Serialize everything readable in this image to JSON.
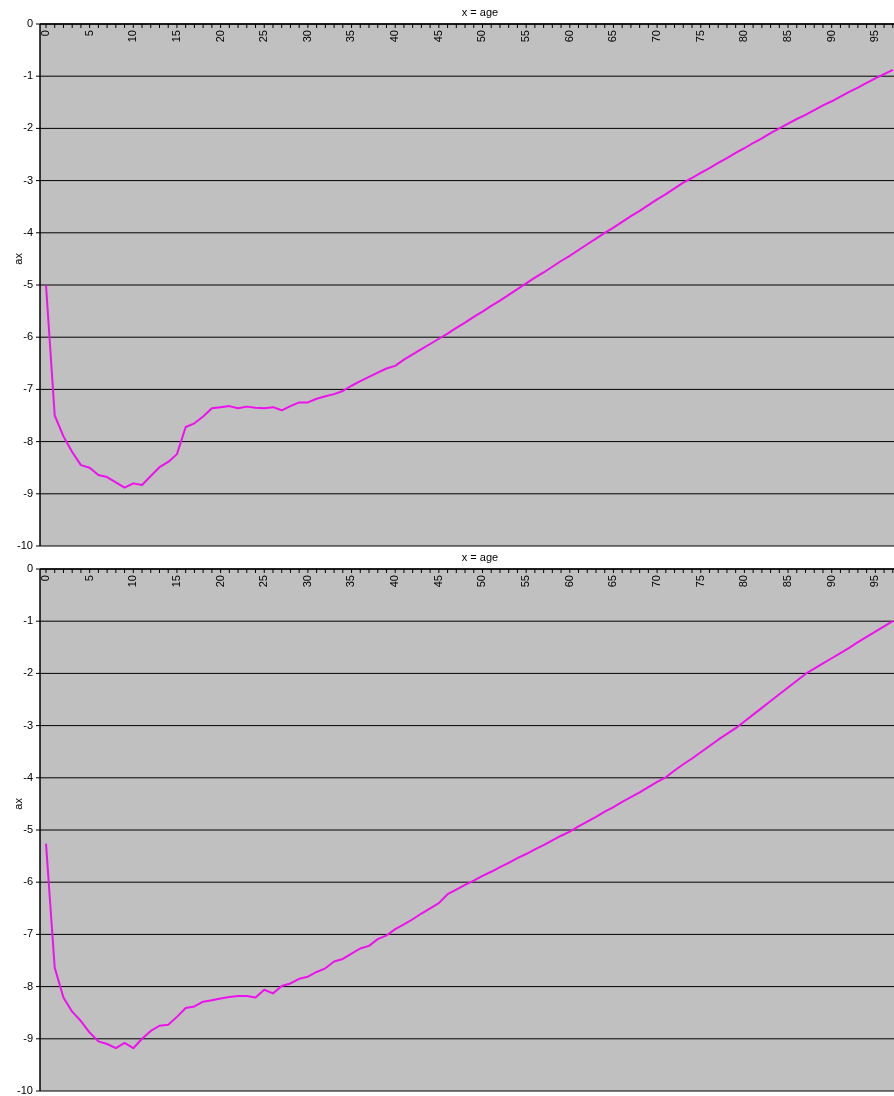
{
  "chart_data": [
    {
      "type": "line",
      "xlabel": "x = age",
      "ylabel": "ax",
      "categories": [
        "0",
        null,
        null,
        null,
        null,
        "5",
        null,
        null,
        null,
        null,
        "10",
        null,
        null,
        null,
        null,
        "15",
        null,
        null,
        null,
        null,
        "20",
        null,
        null,
        null,
        null,
        "25",
        null,
        null,
        null,
        null,
        "30",
        null,
        null,
        null,
        null,
        "35",
        null,
        null,
        null,
        null,
        "40",
        null,
        null,
        null,
        null,
        "45",
        null,
        null,
        null,
        null,
        "50",
        null,
        null,
        null,
        null,
        "55",
        null,
        null,
        null,
        null,
        "60",
        null,
        null,
        null,
        null,
        "65",
        null,
        null,
        null,
        null,
        "70",
        null,
        null,
        null,
        null,
        "75",
        null,
        null,
        null,
        null,
        "80",
        null,
        null,
        null,
        null,
        "85",
        null,
        null,
        null,
        null,
        "90",
        null,
        null,
        null,
        null,
        "95",
        null,
        null
      ],
      "ylim": [
        -10,
        0
      ],
      "yticks": [
        -10,
        -9,
        -8,
        -7,
        -6,
        -5,
        -4,
        -3,
        -2,
        -1,
        0
      ],
      "grid": "y",
      "series": [
        {
          "color": "#ee11ee",
          "values": [
            -5.0,
            -7.5,
            -7.9,
            -8.2,
            -8.45,
            -8.5,
            -8.64,
            -8.68,
            -8.78,
            -8.88,
            -8.8,
            -8.83,
            -8.66,
            -8.49,
            -8.39,
            -8.24,
            -7.72,
            -7.65,
            -7.52,
            -7.36,
            -7.34,
            -7.32,
            -7.36,
            -7.33,
            -7.35,
            -7.36,
            -7.34,
            -7.4,
            -7.32,
            -7.25,
            -7.25,
            -7.18,
            -7.13,
            -7.09,
            -7.03,
            -6.93,
            -6.84,
            -6.76,
            -6.68,
            -6.6,
            -6.55,
            -6.43,
            -6.33,
            -6.23,
            -6.13,
            -6.03,
            -5.93,
            -5.82,
            -5.72,
            -5.61,
            -5.51,
            -5.4,
            -5.3,
            -5.19,
            -5.08,
            -4.97,
            -4.86,
            -4.76,
            -4.65,
            -4.54,
            -4.44,
            -4.33,
            -4.22,
            -4.11,
            -4.0,
            -3.9,
            -3.79,
            -3.68,
            -3.58,
            -3.47,
            -3.36,
            -3.26,
            -3.15,
            -3.04,
            -2.95,
            -2.85,
            -2.76,
            -2.66,
            -2.57,
            -2.47,
            -2.38,
            -2.28,
            -2.19,
            -2.09,
            -2.0,
            -1.91,
            -1.82,
            -1.74,
            -1.65,
            -1.56,
            -1.48,
            -1.39,
            -1.3,
            -1.22,
            -1.13,
            -1.04,
            -0.96,
            -0.88
          ]
        }
      ]
    },
    {
      "type": "line",
      "xlabel": "x = age",
      "ylabel": "ax",
      "categories": [
        "0",
        null,
        null,
        null,
        null,
        "5",
        null,
        null,
        null,
        null,
        "10",
        null,
        null,
        null,
        null,
        "15",
        null,
        null,
        null,
        null,
        "20",
        null,
        null,
        null,
        null,
        "25",
        null,
        null,
        null,
        null,
        "30",
        null,
        null,
        null,
        null,
        "35",
        null,
        null,
        null,
        null,
        "40",
        null,
        null,
        null,
        null,
        "45",
        null,
        null,
        null,
        null,
        "50",
        null,
        null,
        null,
        null,
        "55",
        null,
        null,
        null,
        null,
        "60",
        null,
        null,
        null,
        null,
        "65",
        null,
        null,
        null,
        null,
        "70",
        null,
        null,
        null,
        null,
        "75",
        null,
        null,
        null,
        null,
        "80",
        null,
        null,
        null,
        null,
        "85",
        null,
        null,
        null,
        null,
        "90",
        null,
        null,
        null,
        null,
        "95",
        null,
        null
      ],
      "ylim": [
        -10,
        0
      ],
      "yticks": [
        -10,
        -9,
        -8,
        -7,
        -6,
        -5,
        -4,
        -3,
        -2,
        -1,
        0
      ],
      "grid": "y",
      "series": [
        {
          "color": "#ee11ee",
          "values": [
            -5.26,
            -7.64,
            -8.21,
            -8.48,
            -8.66,
            -8.88,
            -9.05,
            -9.1,
            -9.18,
            -9.08,
            -9.18,
            -9.0,
            -8.85,
            -8.75,
            -8.73,
            -8.58,
            -8.41,
            -8.38,
            -8.29,
            -8.26,
            -8.23,
            -8.2,
            -8.18,
            -8.18,
            -8.21,
            -8.06,
            -8.13,
            -7.99,
            -7.94,
            -7.85,
            -7.81,
            -7.72,
            -7.65,
            -7.52,
            -7.47,
            -7.37,
            -7.27,
            -7.22,
            -7.09,
            -7.02,
            -6.9,
            -6.81,
            -6.71,
            -6.6,
            -6.5,
            -6.4,
            -6.23,
            -6.14,
            -6.05,
            -5.97,
            -5.88,
            -5.8,
            -5.71,
            -5.63,
            -5.54,
            -5.46,
            -5.37,
            -5.29,
            -5.2,
            -5.11,
            -5.03,
            -4.93,
            -4.84,
            -4.75,
            -4.65,
            -4.56,
            -4.46,
            -4.37,
            -4.28,
            -4.18,
            -4.08,
            -3.99,
            -3.86,
            -3.74,
            -3.63,
            -3.51,
            -3.39,
            -3.27,
            -3.16,
            -3.05,
            -2.92,
            -2.79,
            -2.66,
            -2.53,
            -2.4,
            -2.27,
            -2.14,
            -2.01,
            -1.91,
            -1.81,
            -1.71,
            -1.61,
            -1.51,
            -1.4,
            -1.3,
            -1.2,
            -1.1,
            -1.0
          ]
        }
      ]
    }
  ]
}
